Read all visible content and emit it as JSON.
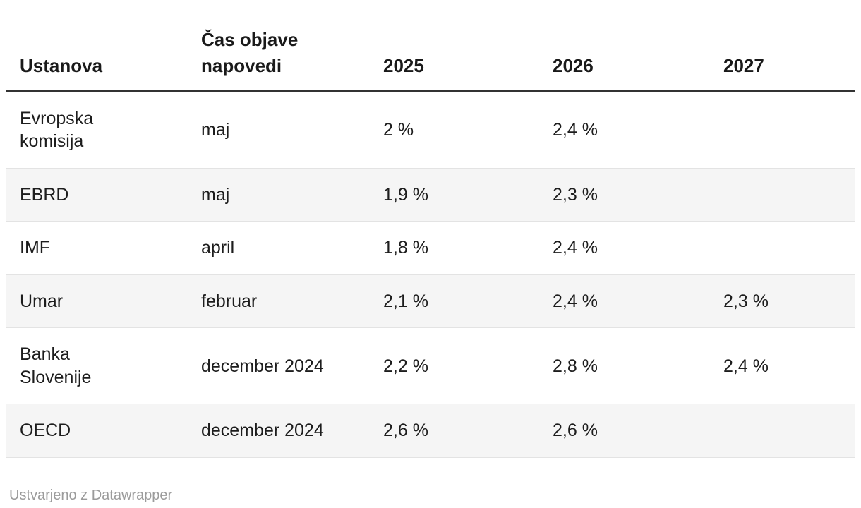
{
  "table": {
    "columns": [
      "Ustanova",
      "Čas objave napovedi",
      "2025",
      "2026",
      "2027"
    ],
    "rows": [
      {
        "cells": [
          "Evropska komisija",
          "maj",
          "2 %",
          "2,4 %",
          ""
        ]
      },
      {
        "cells": [
          "EBRD",
          "maj",
          "1,9 %",
          "2,3 %",
          ""
        ]
      },
      {
        "cells": [
          "IMF",
          "april",
          "1,8 %",
          "2,4 %",
          ""
        ]
      },
      {
        "cells": [
          "Umar",
          "februar",
          "2,1 %",
          "2,4 %",
          "2,3 %"
        ]
      },
      {
        "cells": [
          "Banka Slovenije",
          "december 2024",
          "2,2 %",
          "2,8 %",
          "2,4 %"
        ]
      },
      {
        "cells": [
          "OECD",
          "december 2024",
          "2,6 %",
          "2,6 %",
          ""
        ]
      }
    ]
  },
  "footer": {
    "credit": "Ustvarjeno z Datawrapper"
  },
  "colors": {
    "text": "#1d1d1d",
    "stripe": "#f5f5f5",
    "row_border": "#e3e3e3",
    "header_border": "#333333",
    "footer_text": "#9b9b9b"
  },
  "chart_data": {
    "type": "table",
    "columns": [
      "Ustanova",
      "Čas objave napovedi",
      "2025",
      "2026",
      "2027"
    ],
    "rows": [
      [
        "Evropska komisija",
        "maj",
        "2 %",
        "2,4 %",
        ""
      ],
      [
        "EBRD",
        "maj",
        "1,9 %",
        "2,3 %",
        ""
      ],
      [
        "IMF",
        "april",
        "1,8 %",
        "2,4 %",
        ""
      ],
      [
        "Umar",
        "februar",
        "2,1 %",
        "2,4 %",
        "2,3 %"
      ],
      [
        "Banka Slovenije",
        "december 2024",
        "2,2 %",
        "2,8 %",
        "2,4 %"
      ],
      [
        "OECD",
        "december 2024",
        "2,6 %",
        "2,6 %",
        ""
      ]
    ],
    "layout_hints": {
      "striped_rows": "even",
      "value_alignment": "left",
      "header_rule": "thick-dark",
      "credit_line": "Ustvarjeno z Datawrapper"
    }
  }
}
